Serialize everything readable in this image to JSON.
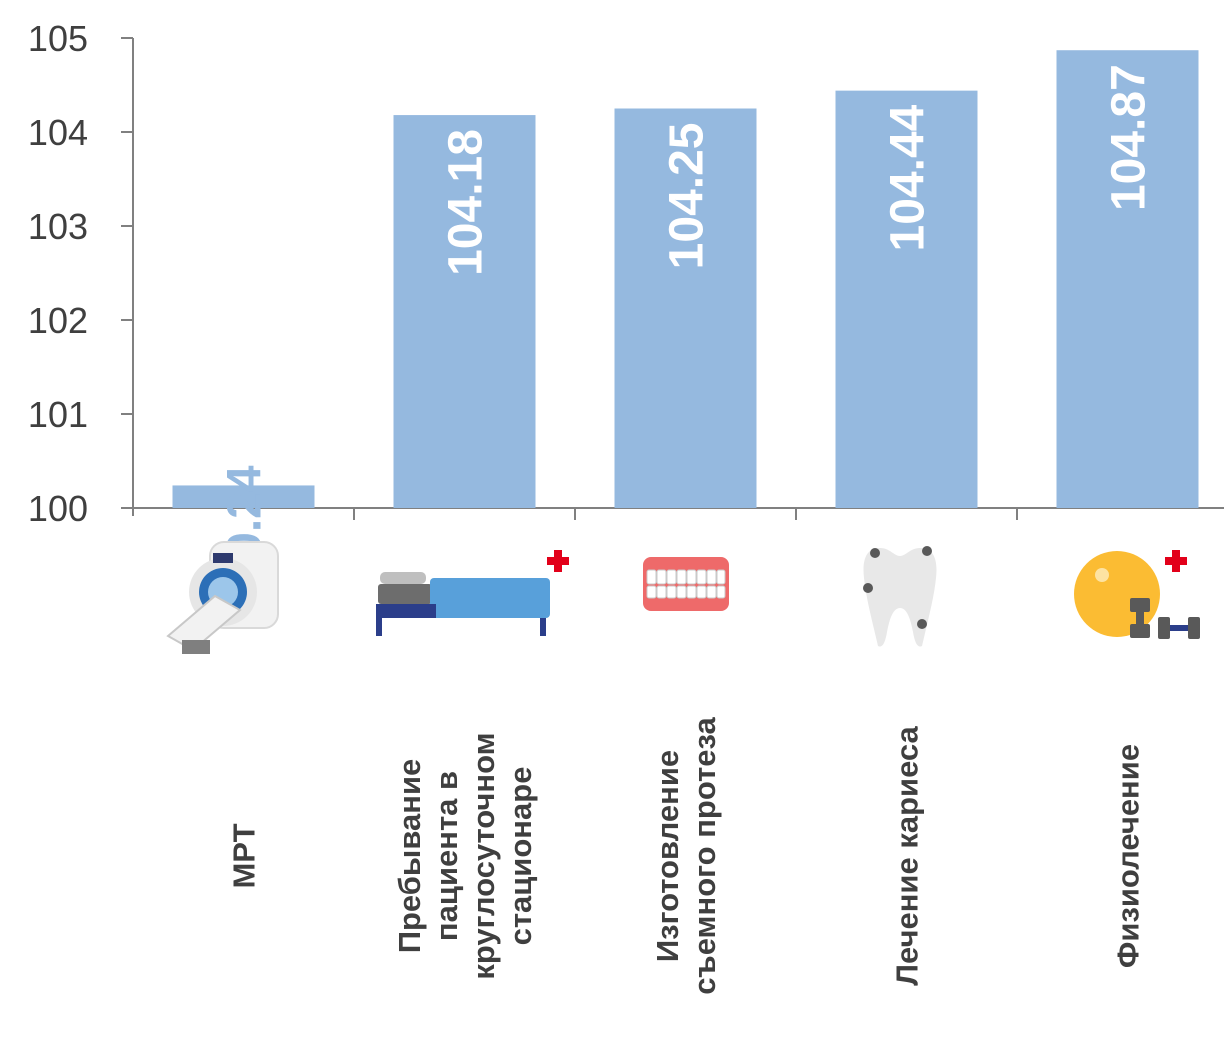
{
  "chart_data": {
    "type": "bar",
    "categories": [
      [
        "МРТ"
      ],
      [
        "Пребывание",
        "пациента в",
        "круглосуточном",
        "стационаре"
      ],
      [
        "Изготовление",
        "съемного протеза"
      ],
      [
        "Лечение кариеса"
      ],
      [
        "Физиолечение"
      ]
    ],
    "values": [
      100.24,
      104.18,
      104.25,
      104.44,
      104.87
    ],
    "value_labels": [
      "100.24",
      "104.18",
      "104.25",
      "104.44",
      "104.87"
    ],
    "ylim": [
      100,
      105
    ],
    "yticks": [
      "100",
      "101",
      "102",
      "103",
      "104",
      "105"
    ],
    "title": "",
    "xlabel": "",
    "ylabel": "",
    "grid": false,
    "legend": "none",
    "icons": [
      "mri-scanner-icon",
      "hospital-bed-icon",
      "denture-icon",
      "decayed-tooth-icon",
      "physiotherapy-icon"
    ],
    "colors": {
      "bar": "#95b9df",
      "label_inside": "#ffffff",
      "label_outside": "#95b9df",
      "axis": "#808080",
      "text": "#3f3f3f",
      "cross": "#e2001a"
    }
  }
}
